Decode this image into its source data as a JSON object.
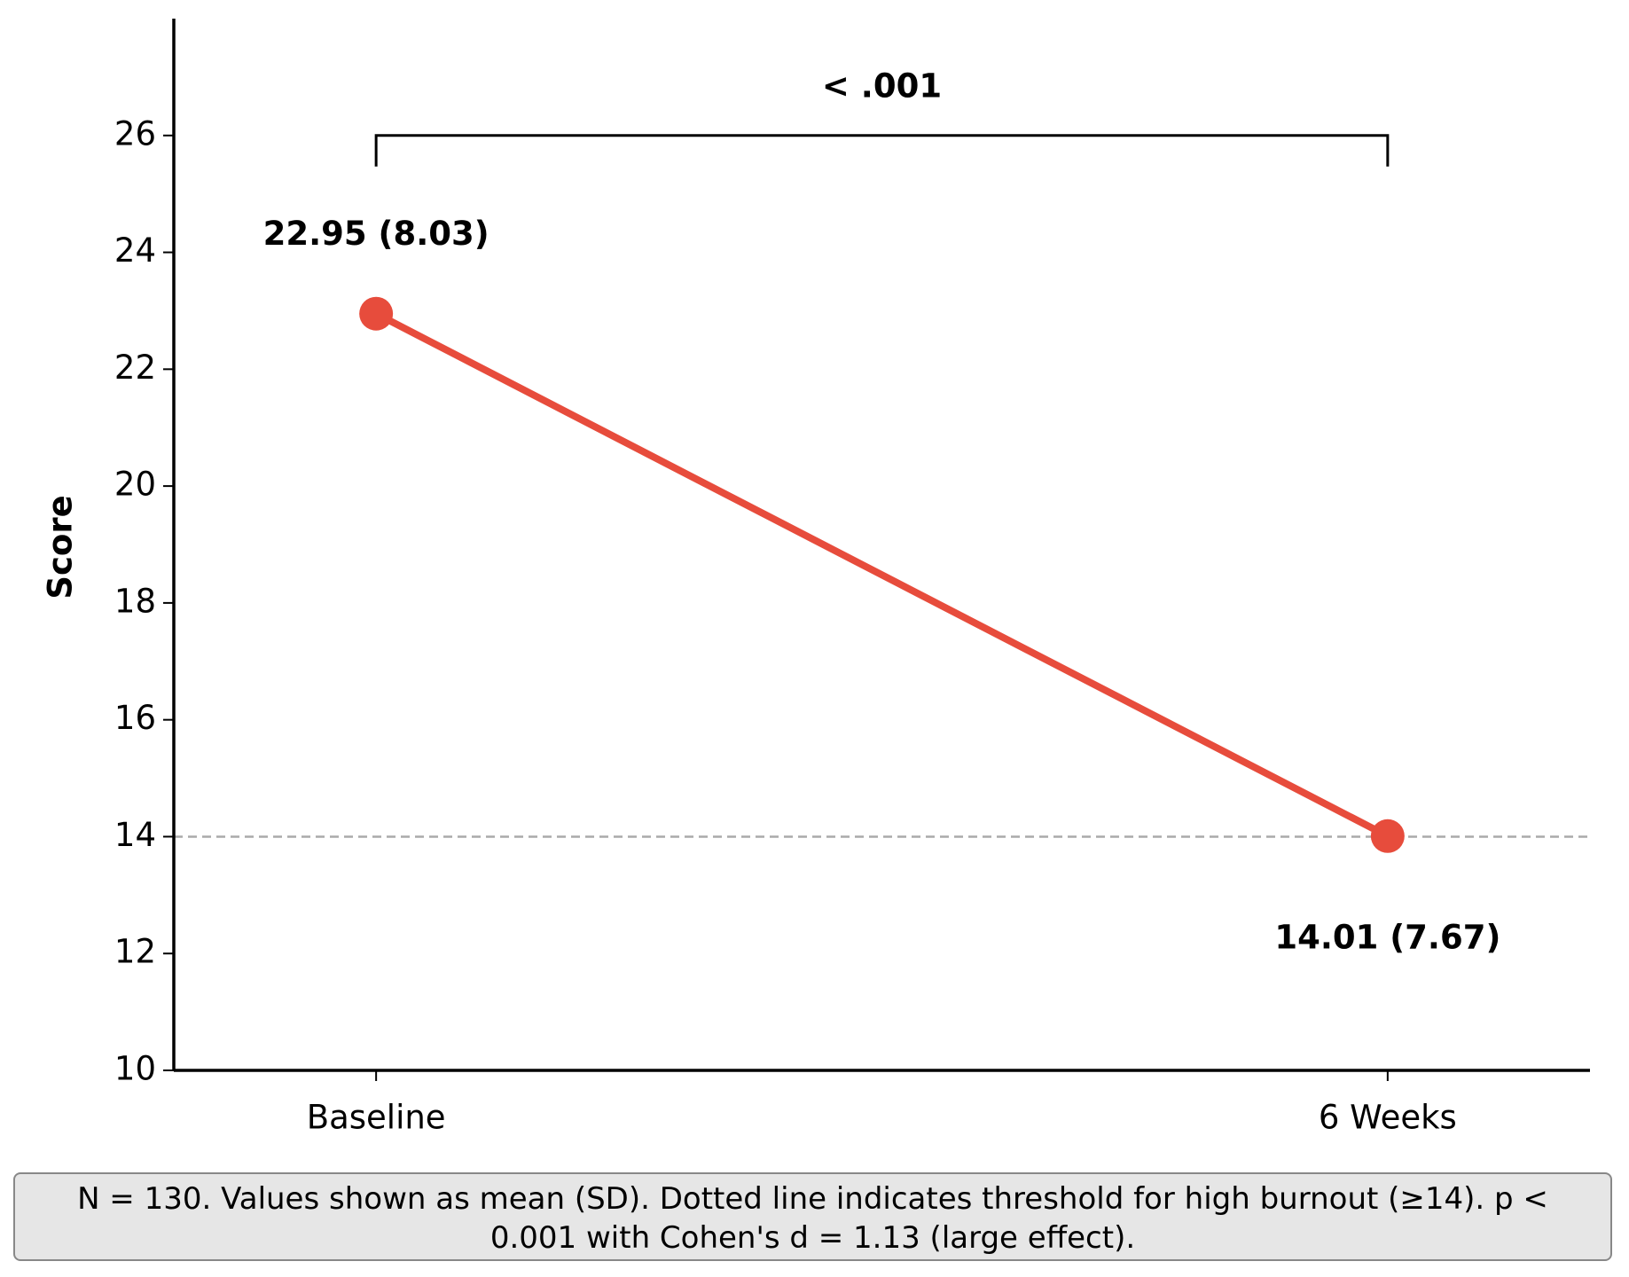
{
  "chart_data": {
    "type": "line",
    "y_label": "Score",
    "categories": [
      "Baseline",
      "6 Weeks"
    ],
    "values": [
      22.95,
      14.01
    ],
    "value_labels": [
      "22.95 (8.03)",
      "14.01 (7.67)"
    ],
    "color": "#e74c3c",
    "ylim": [
      10,
      28
    ],
    "yticks": [
      10,
      12,
      14,
      16,
      18,
      20,
      22,
      24,
      26
    ],
    "threshold": 14,
    "threshold_color": "#aaaaaa",
    "significance": "< .001",
    "note": "N = 130. Values shown as mean (SD). Dotted line indicates threshold for high burnout (≥14). p < 0.001 with Cohen's d = 1.13 (large effect)."
  }
}
